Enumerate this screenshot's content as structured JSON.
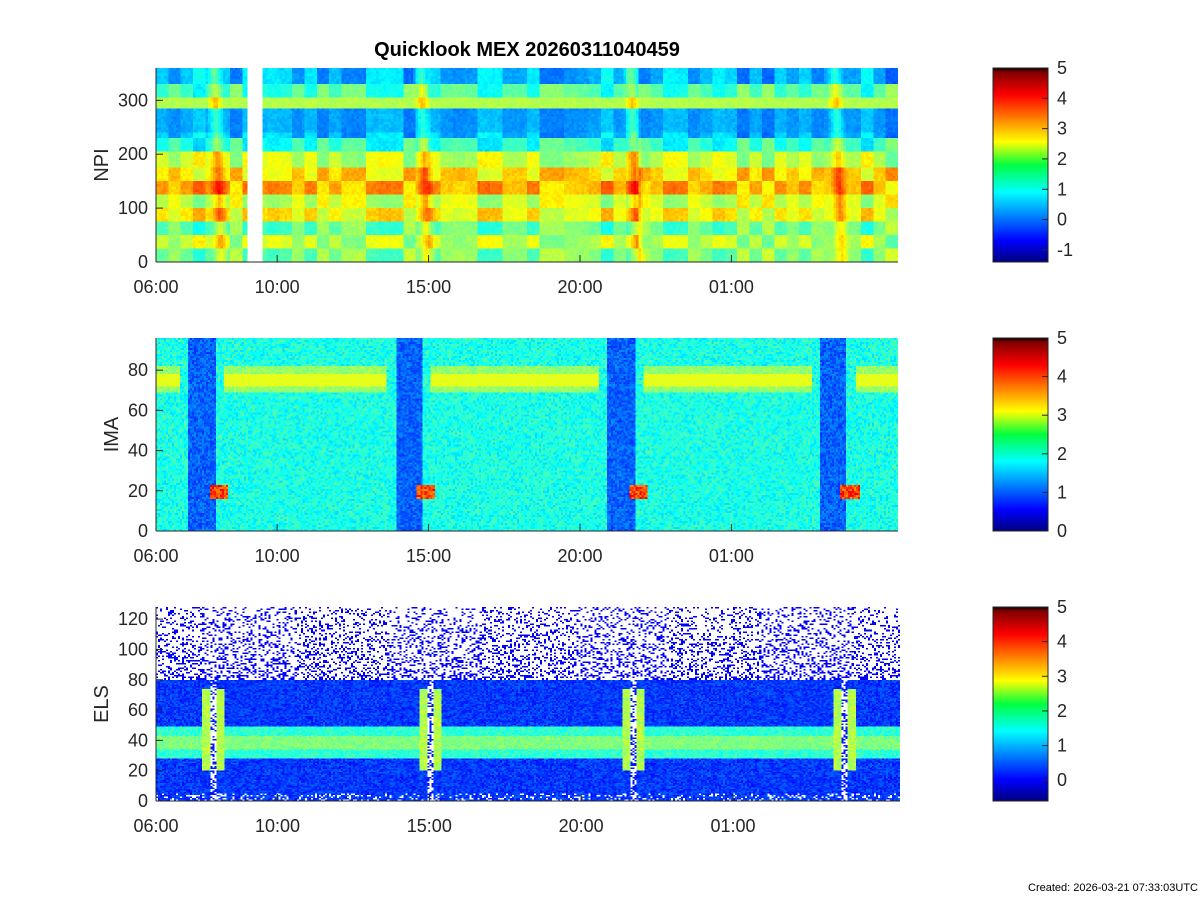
{
  "chart_data": [
    {
      "type": "heatmap",
      "title": "Quicklook MEX 20260311040459",
      "ylabel": "NPI",
      "ylim": [
        0,
        360
      ],
      "yticks": [
        0,
        100,
        200,
        300
      ],
      "xticks": [
        "10:00",
        "15:00",
        "20:00",
        "01:00",
        "06:00"
      ],
      "colorbar": {
        "range": [
          -1.4,
          5
        ],
        "ticks": [
          -1,
          0,
          1,
          2,
          3,
          4,
          5
        ]
      },
      "data_gap": [
        "09:00",
        "09:30"
      ],
      "features": [
        {
          "type": "crossing",
          "time": "08:00"
        },
        {
          "type": "crossing",
          "time": "14:50"
        },
        {
          "type": "crossing",
          "time": "21:45"
        },
        {
          "type": "crossing",
          "time": "04:30"
        }
      ]
    },
    {
      "type": "heatmap",
      "ylabel": "IMA",
      "ylim": [
        0,
        96
      ],
      "yticks": [
        0,
        20,
        40,
        60,
        80
      ],
      "xticks": [
        "10:00",
        "15:00",
        "20:00",
        "01:00",
        "06:00"
      ],
      "colorbar": {
        "range": [
          0,
          5
        ],
        "ticks": [
          0,
          1,
          2,
          3,
          4,
          5
        ]
      },
      "features": [
        {
          "type": "pericenter",
          "time": "07:30",
          "peak_channel": 20
        },
        {
          "type": "pericenter",
          "time": "14:20",
          "peak_channel": 22
        },
        {
          "type": "pericenter",
          "time": "21:20",
          "peak_channel": 20
        },
        {
          "type": "pericenter",
          "time": "04:20",
          "peak_channel": 20
        }
      ]
    },
    {
      "type": "heatmap",
      "ylabel": "ELS",
      "ylim": [
        0,
        128
      ],
      "yticks": [
        0,
        20,
        40,
        60,
        80,
        100,
        120
      ],
      "xticks": [
        "10:00",
        "15:00",
        "20:00",
        "01:00",
        "06:00"
      ],
      "colorbar": {
        "range": [
          -0.6,
          5
        ],
        "ticks": [
          0,
          1,
          2,
          3,
          4,
          5
        ]
      },
      "features": [
        {
          "type": "crossing",
          "time": "07:50"
        },
        {
          "type": "crossing",
          "time": "15:00"
        },
        {
          "type": "crossing",
          "time": "21:40"
        },
        {
          "type": "crossing",
          "time": "04:40"
        }
      ]
    }
  ],
  "footer": "Created: 2026-03-21 07:33:03UTC"
}
